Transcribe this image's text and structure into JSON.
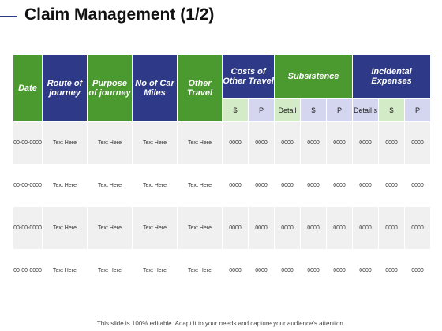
{
  "title": "Claim Management (1/2)",
  "headers": {
    "date": "Date",
    "route": "Route of journey",
    "purpose": "Purpose of journey",
    "car_miles": "No of Car Miles",
    "other_travel": "Other Travel",
    "costs_other_travel": "Costs of Other Travel",
    "subsistence": "Subsistence",
    "incidental": "Incidental Expenses"
  },
  "subheaders": [
    "$",
    "P",
    "Detail",
    "$",
    "P",
    "Detail s",
    "$",
    "P"
  ],
  "rows": [
    {
      "date": "00-00-0000",
      "route": "Text Here",
      "purpose": "Text Here",
      "miles": "Text Here",
      "other": "Text Here",
      "values": [
        "0000",
        "0000",
        "0000",
        "0000",
        "0000",
        "0000",
        "0000",
        "0000"
      ]
    },
    {
      "date": "00-00-0000",
      "route": "Text Here",
      "purpose": "Text Here",
      "miles": "Text Here",
      "other": "Text Here",
      "values": [
        "0000",
        "0000",
        "0000",
        "0000",
        "0000",
        "0000",
        "0000",
        "0000"
      ]
    },
    {
      "date": "00-00-0000",
      "route": "Text Here",
      "purpose": "Text Here",
      "miles": "Text Here",
      "other": "Text Here",
      "values": [
        "0000",
        "0000",
        "0000",
        "0000",
        "0000",
        "0000",
        "0000",
        "0000"
      ]
    },
    {
      "date": "00-00-0000",
      "route": "Text Here",
      "purpose": "Text Here",
      "miles": "Text Here",
      "other": "Text Here",
      "values": [
        "0000",
        "0000",
        "0000",
        "0000",
        "0000",
        "0000",
        "0000",
        "0000"
      ]
    }
  ],
  "footer": "This slide is 100% editable. Adapt it to your needs and capture your audience's attention.",
  "colors": {
    "green": "#4a9a2f",
    "navy": "#2e3a87",
    "light_green": "#d3ecc7",
    "lavender": "#d3d6ee"
  }
}
